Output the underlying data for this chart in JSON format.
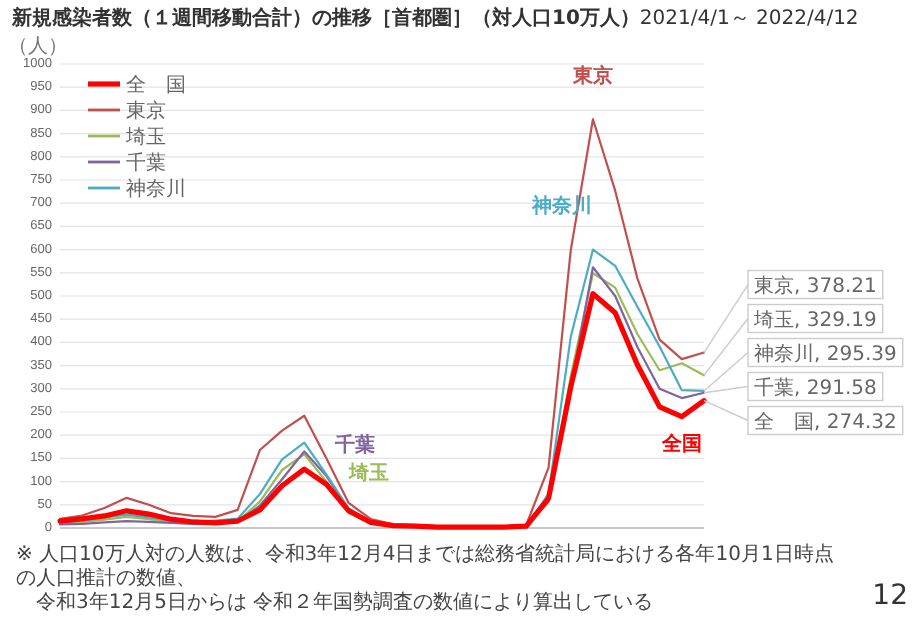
{
  "chart_data": {
    "type": "line",
    "title": "新規感染者数（１週間移動合計）の推移［首都圏］（対人口10万人）",
    "subtitle": "2021/4/1～ 2022/4/12",
    "ylabel": "（人）",
    "categories": [
      null,
      null,
      null,
      null,
      null,
      null,
      null,
      null,
      null,
      null,
      null,
      null,
      null,
      null,
      null,
      null,
      null,
      null,
      null,
      null,
      null,
      null,
      null,
      null,
      null,
      null,
      null,
      null,
      null,
      null
    ],
    "ylim": [
      0,
      1000
    ],
    "yticks": [
      0,
      50,
      100,
      150,
      200,
      250,
      300,
      350,
      400,
      450,
      500,
      550,
      600,
      650,
      700,
      750,
      800,
      850,
      900,
      950,
      1000
    ],
    "grid": "y",
    "legend": "top left",
    "tick_labels": "y",
    "marker": "none",
    "line_style": "solid",
    "series": [
      {
        "name": "全　国",
        "color": "#ff0000",
        "values": [
          15,
          20,
          26,
          37,
          30,
          19,
          13,
          11,
          15,
          39,
          91,
          127,
          94,
          37,
          12,
          5,
          4,
          2,
          2,
          2,
          2,
          4,
          64,
          304,
          505,
          464,
          352,
          261,
          240,
          274.32
        ]
      },
      {
        "name": "東京",
        "color": "#c0504d",
        "values": [
          20,
          27,
          43,
          65,
          50,
          32,
          26,
          24,
          39,
          168,
          210,
          242,
          150,
          54,
          19,
          8,
          6,
          4,
          3,
          3,
          3,
          7,
          130,
          599,
          881,
          727,
          538,
          406,
          364,
          378.21
        ]
      },
      {
        "name": "埼玉",
        "color": "#9bbb59",
        "values": [
          10,
          13,
          18,
          24,
          19,
          12,
          9,
          10,
          14,
          57,
          125,
          159,
          100,
          35,
          12,
          4,
          3,
          2,
          2,
          2,
          2,
          3,
          60,
          327,
          549,
          518,
          418,
          340,
          355,
          329.19
        ]
      },
      {
        "name": "千葉",
        "color": "#8064a2",
        "values": [
          8,
          9,
          12,
          15,
          13,
          11,
          9,
          11,
          14,
          48,
          105,
          165,
          112,
          39,
          12,
          4,
          3,
          2,
          2,
          2,
          2,
          3,
          57,
          303,
          562,
          500,
          390,
          300,
          280,
          291.58
        ]
      },
      {
        "name": "神奈川",
        "color": "#4bacc6",
        "values": [
          12,
          16,
          23,
          29,
          23,
          16,
          13,
          16,
          20,
          73,
          148,
          184,
          115,
          42,
          14,
          5,
          4,
          2,
          2,
          2,
          2,
          3,
          74,
          412,
          600,
          565,
          477,
          391,
          297,
          295.39
        ]
      }
    ],
    "annotations": [
      "東京",
      "神奈川",
      "千葉",
      "埼玉",
      "全国",
      "東京, 378.21",
      "埼玉, 329.19",
      "神奈川, 295.39",
      "千葉, 291.58",
      "全　国, 274.32",
      "※ 人口10万人対の人数は、令和3年12月4日までは総務省統計局における各年10月1日時点の人口推計の数値、",
      "令和3年12月5日からは 令和２年国勢調査の数値により算出している",
      "12"
    ]
  }
}
